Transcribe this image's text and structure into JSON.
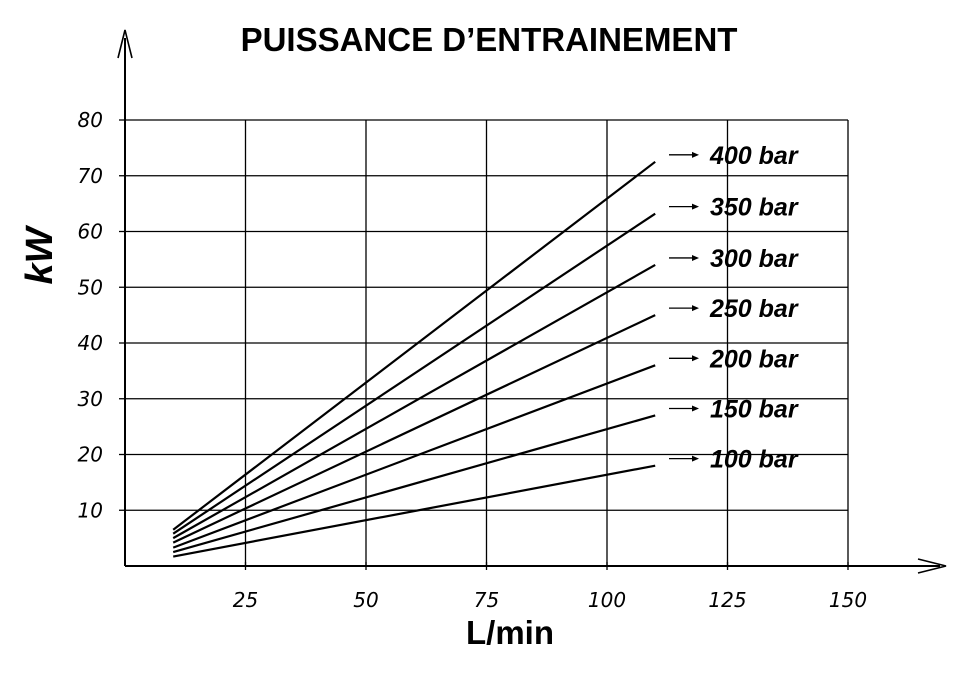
{
  "chart_data": {
    "type": "line",
    "title": "PUISSANCE D’ENTRAINEMENT",
    "xlabel": "L/min",
    "ylabel": "kW",
    "xlim": [
      0,
      170
    ],
    "ylim": [
      0,
      80
    ],
    "x_ticks": [
      "25",
      "50",
      "75",
      "100",
      "125",
      "150"
    ],
    "y_ticks": [
      "10",
      "20",
      "30",
      "40",
      "50",
      "60",
      "70",
      "80"
    ],
    "grid": true,
    "x": [
      10,
      110
    ],
    "series": [
      {
        "name": "400 bar",
        "values": [
          6.5,
          72.5
        ]
      },
      {
        "name": "350 bar",
        "values": [
          5.8,
          63.2
        ]
      },
      {
        "name": "300 bar",
        "values": [
          5.0,
          54.0
        ]
      },
      {
        "name": "250 bar",
        "values": [
          4.2,
          45.0
        ]
      },
      {
        "name": "200 bar",
        "values": [
          3.3,
          36.0
        ]
      },
      {
        "name": "150 bar",
        "values": [
          2.5,
          27.0
        ]
      },
      {
        "name": "100 bar",
        "values": [
          1.7,
          18.0
        ]
      }
    ],
    "series_label_marker": "→"
  }
}
